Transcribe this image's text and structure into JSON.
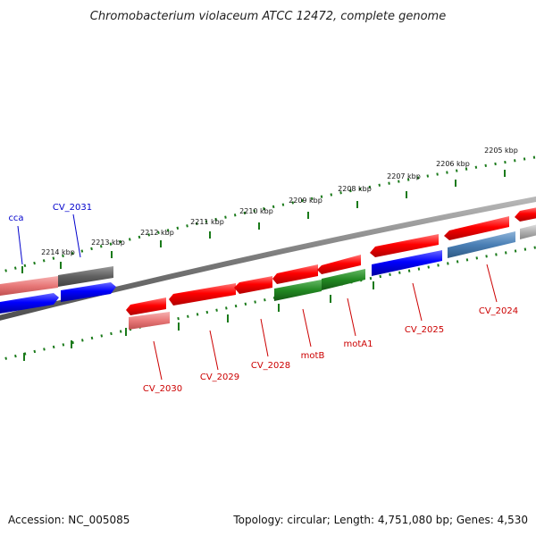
{
  "title": "Chromobacterium violaceum ATCC 12472, complete genome",
  "footer": {
    "accession": "Accession: NC_005085",
    "summary": "Topology: circular; Length: 4,751,080 bp; Genes: 4,530"
  },
  "colors": {
    "backbone": "#808080",
    "tick": "#1a7a1a",
    "red_gene": "#ff0000",
    "pink_gene": "#e87878",
    "blue_gene": "#0000ff",
    "gray_gene": "#606060",
    "green_gene": "#228822",
    "steel_gene": "#4a7fb5",
    "light_gray_gene": "#b0b0b0",
    "red_label": "#cc0000",
    "blue_label": "#0000cc"
  },
  "ticks": [
    {
      "label": "2214 kbp"
    },
    {
      "label": "2213 kbp"
    },
    {
      "label": "2212 kbp"
    },
    {
      "label": "2211 kbp"
    },
    {
      "label": "2210 kbp"
    },
    {
      "label": "2209 kbp"
    },
    {
      "label": "2208 kbp"
    },
    {
      "label": "2207 kbp"
    },
    {
      "label": "2206 kbp"
    },
    {
      "label": "2205 kbp"
    }
  ],
  "gene_labels": [
    {
      "text": "cca",
      "strand": "forward"
    },
    {
      "text": "CV_2031",
      "strand": "forward"
    },
    {
      "text": "CV_2030",
      "strand": "reverse"
    },
    {
      "text": "CV_2029",
      "strand": "reverse"
    },
    {
      "text": "CV_2028",
      "strand": "reverse"
    },
    {
      "text": "motB",
      "strand": "reverse"
    },
    {
      "text": "motA1",
      "strand": "reverse"
    },
    {
      "text": "CV_2025",
      "strand": "reverse"
    },
    {
      "text": "CV_2024",
      "strand": "reverse"
    }
  ]
}
